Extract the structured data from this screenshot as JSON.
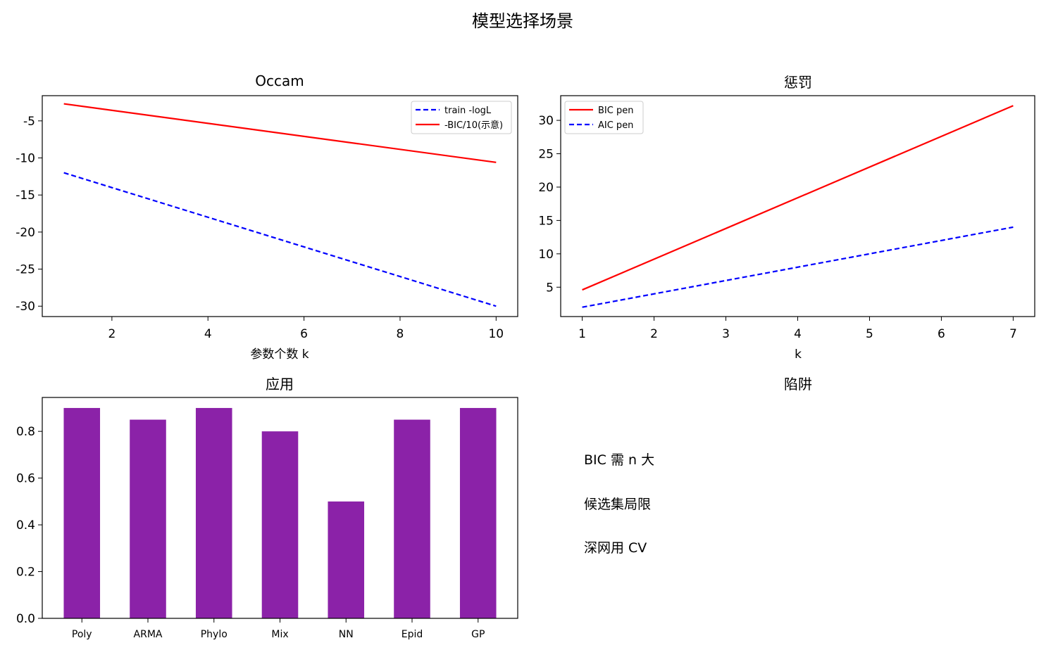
{
  "title": "模型选择场景",
  "chart_data": [
    {
      "type": "line",
      "title": "Occam",
      "xlabel": "参数个数 k",
      "ylabel": "",
      "xlim": [
        0.55,
        10.45
      ],
      "ylim": [
        -31.4,
        -1.6
      ],
      "xticks": [
        2,
        4,
        6,
        8,
        10
      ],
      "yticks": [
        -5,
        -10,
        -15,
        -20,
        -25,
        -30
      ],
      "legend": "top-right",
      "series": [
        {
          "name": "train -logL",
          "color": "#0000ff",
          "dash": true,
          "x": [
            1,
            10
          ],
          "y": [
            -12,
            -30
          ]
        },
        {
          "name": "-BIC/10(示意)",
          "color": "#ff0000",
          "dash": false,
          "x": [
            1,
            10
          ],
          "y": [
            -2.7,
            -10.6
          ]
        }
      ]
    },
    {
      "type": "line",
      "title": "惩罚",
      "xlabel": "k",
      "ylabel": "",
      "xlim": [
        0.7,
        7.3
      ],
      "ylim": [
        0.6,
        33.7
      ],
      "xticks": [
        1,
        2,
        3,
        4,
        5,
        6,
        7
      ],
      "yticks": [
        5,
        10,
        15,
        20,
        25,
        30
      ],
      "legend": "top-left",
      "series": [
        {
          "name": "BIC pen",
          "color": "#ff0000",
          "dash": false,
          "x": [
            1,
            7
          ],
          "y": [
            4.6,
            32.2
          ]
        },
        {
          "name": "AIC pen",
          "color": "#0000ff",
          "dash": true,
          "x": [
            1,
            7
          ],
          "y": [
            2,
            14
          ]
        }
      ]
    },
    {
      "type": "bar",
      "title": "应用",
      "xlabel": "",
      "ylabel": "",
      "ylim": [
        0,
        0.945
      ],
      "yticks": [
        0.0,
        0.2,
        0.4,
        0.6,
        0.8
      ],
      "ytick_labels": [
        "0.0",
        "0.2",
        "0.4",
        "0.6",
        "0.8"
      ],
      "color": "#8b22a8",
      "categories": [
        "Poly",
        "ARMA",
        "Phylo",
        "Mix",
        "NN",
        "Epid",
        "GP"
      ],
      "values": [
        0.9,
        0.85,
        0.9,
        0.8,
        0.5,
        0.85,
        0.9
      ]
    }
  ],
  "pitfalls": {
    "title": "陷阱",
    "lines": [
      "BIC 需 n 大",
      "候选集局限",
      "深网用 CV"
    ]
  }
}
